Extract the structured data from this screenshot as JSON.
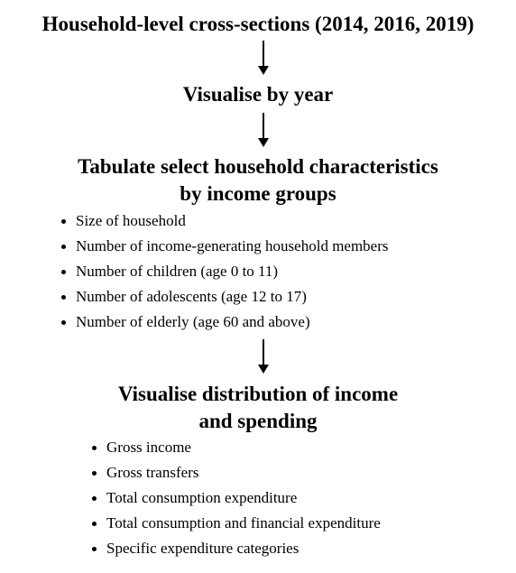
{
  "steps": [
    {
      "title": "Household-level cross-sections (2014, 2016, 2019)",
      "items": []
    },
    {
      "title": "Visualise by year",
      "items": []
    },
    {
      "title_lines": [
        "Tabulate select household characteristics",
        "by income groups"
      ],
      "items": [
        "Size of household",
        "Number of income-generating household members",
        "Number of children (age 0 to 11)",
        "Number of adolescents (age 12 to 17)",
        "Number of elderly (age 60 and above)"
      ]
    },
    {
      "title_lines": [
        "Visualise distribution of income",
        "and spending"
      ],
      "items": [
        "Gross income",
        "Gross transfers",
        "Total consumption expenditure",
        "Total consumption and financial expenditure",
        "Specific expenditure categories"
      ]
    }
  ]
}
